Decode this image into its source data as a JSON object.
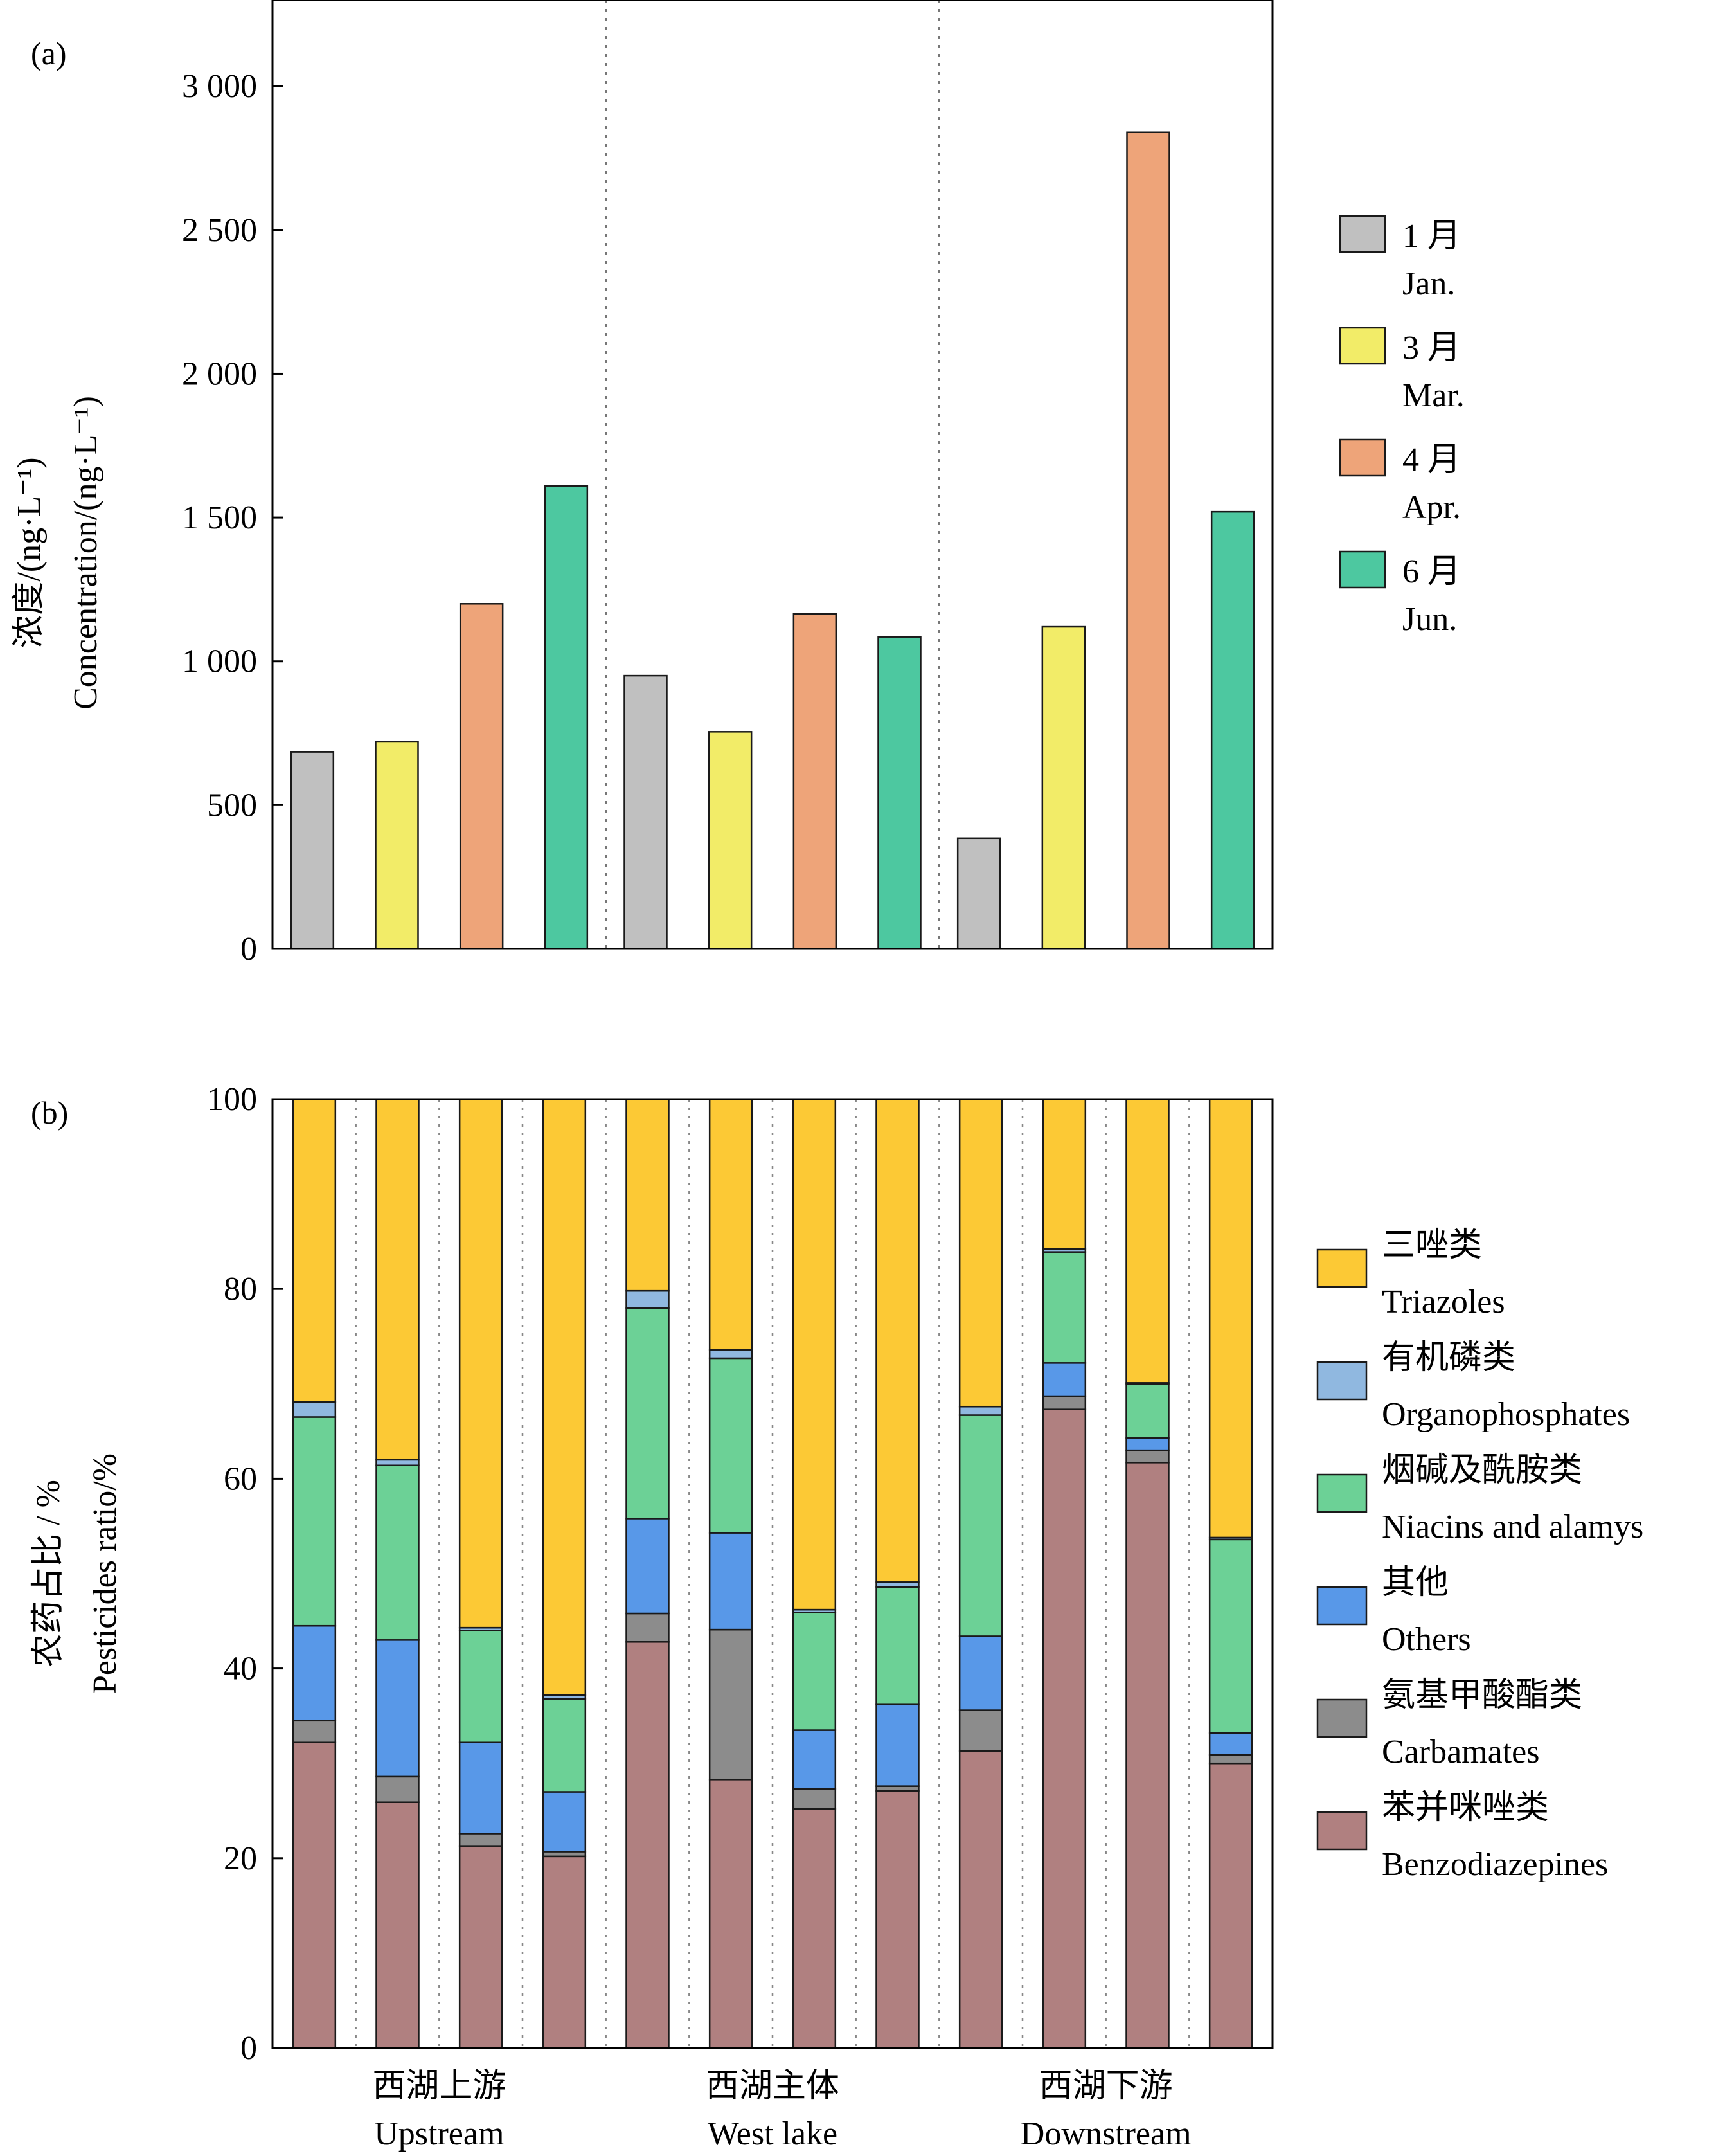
{
  "chart_data": [
    {
      "type": "bar",
      "panel_label": "(a)",
      "ylabel": [
        "浓度/(ng·L⁻¹)",
        "Concentration/(ng·L⁻¹)"
      ],
      "ylim": [
        0,
        3300
      ],
      "yticks": [
        0,
        500,
        1000,
        1500,
        2000,
        2500,
        3000
      ],
      "ytick_labels": [
        "0",
        "500",
        "1 000",
        "1 500",
        "2 000",
        "2 500",
        "3 000"
      ],
      "groups": [
        "西湖上游 Upstream",
        "西湖主体 West lake",
        "西湖下游 Downstream"
      ],
      "legend_position": "right",
      "series": [
        {
          "name": "1 月 Jan.",
          "label_cn": "1 月",
          "label_en": "Jan.",
          "color": "#c0c0c0",
          "values": [
            685,
            950,
            385
          ]
        },
        {
          "name": "3 月 Mar.",
          "label_cn": "3 月",
          "label_en": "Mar.",
          "color": "#f2ec68",
          "values": [
            720,
            755,
            1120
          ]
        },
        {
          "name": "4 月 Apr.",
          "label_cn": "4 月",
          "label_en": "Apr.",
          "color": "#eea479",
          "values": [
            1200,
            1165,
            2840
          ]
        },
        {
          "name": "6 月 Jun.",
          "label_cn": "6 月",
          "label_en": "Jun.",
          "color": "#4dc8a0",
          "values": [
            1610,
            1085,
            1520
          ]
        }
      ]
    },
    {
      "type": "bar",
      "stacked": true,
      "panel_label": "(b)",
      "ylabel": [
        "农药占比 / %",
        "Pesticides ratio/%"
      ],
      "ylim": [
        0,
        100
      ],
      "yticks": [
        0,
        20,
        40,
        60,
        80,
        100
      ],
      "ytick_labels": [
        "0",
        "20",
        "40",
        "60",
        "80",
        "100"
      ],
      "group_labels": [
        {
          "cn": "西湖上游",
          "en": "Upstream"
        },
        {
          "cn": "西湖主体",
          "en": "West lake"
        },
        {
          "cn": "西湖下游",
          "en": "Downstream"
        }
      ],
      "bars_per_group": 4,
      "legend_position": "right",
      "series": [
        {
          "name": "苯并咪唑类 Benzodiazepines",
          "label_cn": "苯并咪唑类",
          "label_en": "Benzodiazepines",
          "color": "#b08080",
          "values": [
            32.2,
            25.9,
            21.3,
            20.2,
            42.8,
            28.3,
            25.2,
            27.1,
            31.3,
            67.3,
            61.7,
            30.0
          ]
        },
        {
          "name": "氨基甲酸酯类 Carbamates",
          "label_cn": "氨基甲酸酯类",
          "label_en": "Carbamates",
          "color": "#8c8c8c",
          "values": [
            2.3,
            2.7,
            1.3,
            0.5,
            3.0,
            15.8,
            2.1,
            0.5,
            4.3,
            1.4,
            1.3,
            0.9
          ]
        },
        {
          "name": "其他 Others",
          "label_cn": "其他",
          "label_en": "Others",
          "color": "#5898e8",
          "values": [
            10.0,
            14.4,
            9.6,
            6.3,
            10.0,
            10.2,
            6.2,
            8.6,
            7.8,
            3.5,
            1.3,
            2.3
          ]
        },
        {
          "name": "烟碱及酰胺类 Niacins and alamys",
          "label_cn": "烟碱及酰胺类",
          "label_en": "Niacins and alamys",
          "color": "#6cd196",
          "values": [
            22.0,
            18.4,
            11.8,
            9.8,
            22.2,
            18.4,
            12.4,
            12.4,
            23.3,
            11.7,
            5.7,
            20.4
          ]
        },
        {
          "name": "有机磷类 Organophosphates",
          "label_cn": "有机磷类",
          "label_en": "Organophosphates",
          "color": "#90b8e0",
          "values": [
            1.6,
            0.6,
            0.3,
            0.4,
            1.8,
            0.9,
            0.3,
            0.5,
            0.9,
            0.3,
            0.1,
            0.2
          ]
        },
        {
          "name": "三唑类 Triazoles",
          "label_cn": "三唑类",
          "label_en": "Triazoles",
          "color": "#fcc935",
          "values": [
            31.9,
            38.0,
            55.7,
            62.8,
            20.2,
            26.4,
            53.8,
            50.9,
            32.4,
            15.8,
            29.9,
            46.2
          ]
        }
      ]
    }
  ]
}
